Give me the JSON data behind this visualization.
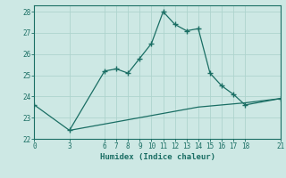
{
  "xlabel": "Humidex (Indice chaleur)",
  "background_color": "#cde8e4",
  "line_color": "#1a6e64",
  "grid_color": "#aed4ce",
  "xticks": [
    0,
    3,
    6,
    7,
    8,
    9,
    10,
    11,
    12,
    13,
    14,
    15,
    16,
    17,
    18,
    21
  ],
  "yticks": [
    22,
    23,
    24,
    25,
    26,
    27,
    28
  ],
  "xlim": [
    0,
    21
  ],
  "ylim": [
    22,
    28.3
  ],
  "series1_x": [
    0,
    3,
    6,
    7,
    8,
    9,
    10,
    11,
    12,
    13,
    14,
    15,
    16,
    17,
    18,
    21
  ],
  "series1_y": [
    23.6,
    22.4,
    25.2,
    25.3,
    25.1,
    25.8,
    26.5,
    28.0,
    27.4,
    27.1,
    27.2,
    25.1,
    24.5,
    24.1,
    23.6,
    23.9
  ],
  "series2_x": [
    3,
    6,
    7,
    8,
    9,
    10,
    11,
    12,
    13,
    14,
    15,
    16,
    17,
    18,
    21
  ],
  "series2_y": [
    22.4,
    22.7,
    22.8,
    22.9,
    23.0,
    23.1,
    23.2,
    23.3,
    23.4,
    23.5,
    23.55,
    23.6,
    23.65,
    23.7,
    23.9
  ],
  "font_size_ticks": 5.5,
  "font_size_xlabel": 6.5
}
